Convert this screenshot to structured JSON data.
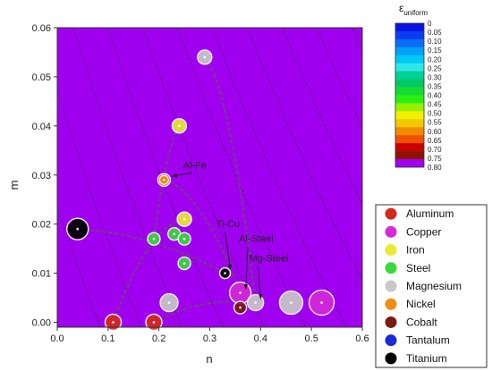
{
  "chart_data": {
    "type": "scatter",
    "title": "",
    "xlabel": "n",
    "ylabel": "m",
    "xlim": [
      0.0,
      0.6
    ],
    "ylim": [
      -0.001,
      0.06
    ],
    "x_ticks": [
      "0.0",
      "0.1",
      "0.2",
      "0.3",
      "0.4",
      "0.5",
      "0.6"
    ],
    "y_ticks": [
      "0.00",
      "0.01",
      "0.02",
      "0.03",
      "0.04",
      "0.05",
      "0.06"
    ],
    "grid": false,
    "contour": {
      "quantity_label": "ε",
      "quantity_sub": "uniform",
      "levels": [
        0,
        0.05,
        0.1,
        0.15,
        0.2,
        0.25,
        0.3,
        0.35,
        0.4,
        0.45,
        0.5,
        0.55,
        0.6,
        0.65,
        0.7,
        0.75,
        0.8
      ],
      "level_labels": [
        "0",
        "0.05",
        "0.10",
        "0.15",
        "0.20",
        "0.25",
        "0.30",
        "0.35",
        "0.40",
        "0.45",
        "0.50",
        "0.55",
        "0.60",
        "0.65",
        "0.70",
        "0.75",
        "0.80"
      ],
      "colors": [
        "#0a14e0",
        "#0a3cf0",
        "#0a6ef5",
        "#00a0f5",
        "#00c8f5",
        "#2ee6e6",
        "#00d296",
        "#00c864",
        "#14dc32",
        "#28f014",
        "#96f000",
        "#f0f000",
        "#f0c800",
        "#f08c00",
        "#f05000",
        "#c80000",
        "#8c1400",
        "#a000f0"
      ],
      "legend_position": "top-right"
    },
    "series": [
      {
        "name": "Aluminum",
        "color": "#d42a1a",
        "points": [
          [
            0.11,
            0.0
          ],
          [
            0.19,
            0.0
          ],
          [
            0.21,
            0.029
          ]
        ]
      },
      {
        "name": "Copper",
        "color": "#d42ad8",
        "points": [
          [
            0.36,
            0.006
          ],
          [
            0.52,
            0.004
          ]
        ]
      },
      {
        "name": "Iron",
        "color": "#eaea30",
        "points": [
          [
            0.24,
            0.04
          ],
          [
            0.25,
            0.021
          ]
        ]
      },
      {
        "name": "Steel",
        "color": "#3ad83a",
        "points": [
          [
            0.19,
            0.017
          ],
          [
            0.23,
            0.018
          ],
          [
            0.25,
            0.017
          ],
          [
            0.25,
            0.012
          ]
        ]
      },
      {
        "name": "Magnesium",
        "color": "#c8c8c8",
        "points": [
          [
            0.29,
            0.054
          ],
          [
            0.22,
            0.004
          ],
          [
            0.46,
            0.004
          ],
          [
            0.39,
            0.004
          ]
        ]
      },
      {
        "name": "Nickel",
        "color": "#f08c10",
        "points": [
          [
            0.21,
            0.029
          ]
        ]
      },
      {
        "name": "Cobalt",
        "color": "#7a1a10",
        "points": [
          [
            0.36,
            0.003
          ]
        ]
      },
      {
        "name": "Tantalum",
        "color": "#1a2ad8",
        "points": [
          [
            0.33,
            0.01
          ]
        ]
      },
      {
        "name": "Titanium",
        "color": "#000000",
        "points": [
          [
            0.04,
            0.019
          ],
          [
            0.33,
            0.01
          ]
        ]
      }
    ],
    "annotations": [
      {
        "text": "Al-Fe",
        "point": [
          0.215,
          0.029
        ],
        "label": [
          0.265,
          0.031
        ]
      },
      {
        "text": "Ti-Cu",
        "point": [
          0.33,
          0.01
        ],
        "label": [
          0.33,
          0.019
        ]
      },
      {
        "text": "Al-Steel",
        "point": [
          0.36,
          0.006
        ],
        "label": [
          0.375,
          0.016
        ]
      },
      {
        "text": "Mg-Steel",
        "point": [
          0.39,
          0.004
        ],
        "label": [
          0.395,
          0.012
        ]
      }
    ],
    "legend_entries": [
      "Aluminum",
      "Copper",
      "Iron",
      "Steel",
      "Magnesium",
      "Nickel",
      "Cobalt",
      "Tantalum",
      "Titanium"
    ]
  }
}
